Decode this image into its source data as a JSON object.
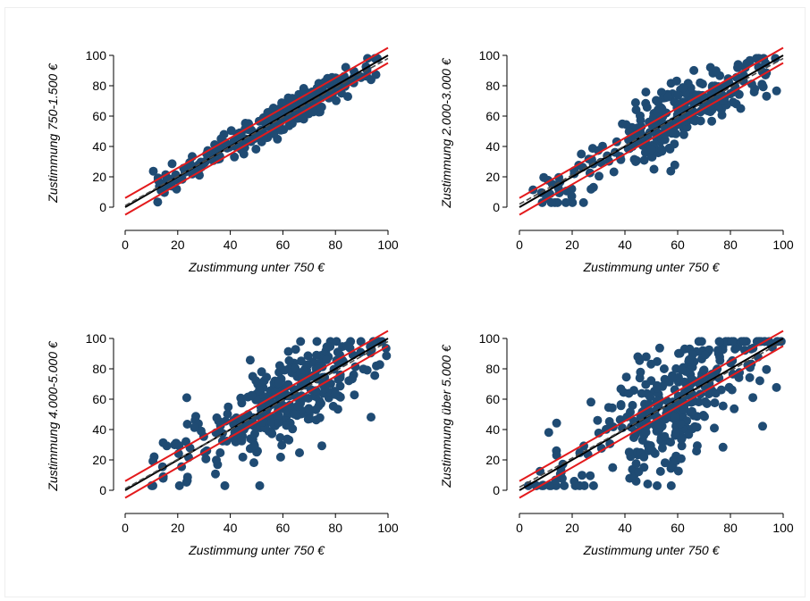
{
  "colors": {
    "points": "#1f4b73",
    "identity_line": "#000000",
    "fit_line": "#4a4a4a",
    "band_lines": "#e31a1c",
    "background": "#ffffff"
  },
  "chart_data": [
    {
      "type": "scatter",
      "xlabel": "Zustimmung unter 750 €",
      "ylabel": "Zustimmung 750-1.500 €",
      "xlim": [
        0,
        100
      ],
      "ylim": [
        0,
        100
      ],
      "xticks": [
        "0",
        "20",
        "40",
        "60",
        "80",
        "100"
      ],
      "yticks": [
        "0",
        "20",
        "40",
        "60",
        "80",
        "100"
      ],
      "grid": false,
      "lines": [
        {
          "role": "identity",
          "x": [
            0,
            100
          ],
          "y": [
            0,
            100
          ]
        },
        {
          "role": "fit",
          "x": [
            0,
            100
          ],
          "y": [
            1,
            98
          ]
        },
        {
          "role": "band-upper",
          "x": [
            0,
            100
          ],
          "y": [
            6,
            105
          ]
        },
        {
          "role": "band-lower",
          "x": [
            0,
            100
          ],
          "y": [
            -5,
            95
          ]
        }
      ],
      "points": {
        "n": 320,
        "x_range": [
          8,
          98
        ],
        "spread": 5
      }
    },
    {
      "type": "scatter",
      "xlabel": "Zustimmung unter 750 €",
      "ylabel": "Zustimmung 2.000-3.000 €",
      "xlim": [
        0,
        100
      ],
      "ylim": [
        0,
        100
      ],
      "xticks": [
        "0",
        "20",
        "40",
        "60",
        "80",
        "100"
      ],
      "yticks": [
        "0",
        "20",
        "40",
        "60",
        "80",
        "100"
      ],
      "grid": false,
      "lines": [
        {
          "role": "identity",
          "x": [
            0,
            100
          ],
          "y": [
            0,
            100
          ]
        },
        {
          "role": "fit",
          "x": [
            0,
            100
          ],
          "y": [
            2,
            98
          ]
        },
        {
          "role": "band-upper",
          "x": [
            0,
            100
          ],
          "y": [
            6,
            105
          ]
        },
        {
          "role": "band-lower",
          "x": [
            0,
            100
          ],
          "y": [
            -5,
            95
          ]
        }
      ],
      "points": {
        "n": 320,
        "x_range": [
          5,
          98
        ],
        "spread": 10
      }
    },
    {
      "type": "scatter",
      "xlabel": "Zustimmung unter 750 €",
      "ylabel": "Zustimmung 4.000-5.000 €",
      "xlim": [
        0,
        100
      ],
      "ylim": [
        0,
        100
      ],
      "xticks": [
        "0",
        "20",
        "40",
        "60",
        "80",
        "100"
      ],
      "yticks": [
        "0",
        "20",
        "40",
        "60",
        "80",
        "100"
      ],
      "grid": false,
      "lines": [
        {
          "role": "identity",
          "x": [
            0,
            100
          ],
          "y": [
            0,
            100
          ]
        },
        {
          "role": "fit",
          "x": [
            0,
            100
          ],
          "y": [
            1,
            98
          ]
        },
        {
          "role": "band-upper",
          "x": [
            0,
            100
          ],
          "y": [
            6,
            105
          ]
        },
        {
          "role": "band-lower",
          "x": [
            0,
            100
          ],
          "y": [
            -5,
            95
          ]
        }
      ],
      "points": {
        "n": 320,
        "x_range": [
          10,
          100
        ],
        "spread": 15
      }
    },
    {
      "type": "scatter",
      "xlabel": "Zustimmung unter 750 €",
      "ylabel": "Zustimmung über 5.000 €",
      "xlim": [
        0,
        100
      ],
      "ylim": [
        0,
        100
      ],
      "xticks": [
        "0",
        "20",
        "40",
        "60",
        "80",
        "100"
      ],
      "yticks": [
        "0",
        "20",
        "40",
        "60",
        "80",
        "100"
      ],
      "grid": false,
      "lines": [
        {
          "role": "identity",
          "x": [
            0,
            100
          ],
          "y": [
            0,
            100
          ]
        },
        {
          "role": "fit",
          "x": [
            0,
            100
          ],
          "y": [
            2,
            98
          ]
        },
        {
          "role": "band-upper",
          "x": [
            0,
            100
          ],
          "y": [
            6,
            105
          ]
        },
        {
          "role": "band-lower",
          "x": [
            0,
            100
          ],
          "y": [
            -5,
            95
          ]
        }
      ],
      "points": {
        "n": 330,
        "x_range": [
          3,
          100
        ],
        "spread": 20
      }
    }
  ]
}
